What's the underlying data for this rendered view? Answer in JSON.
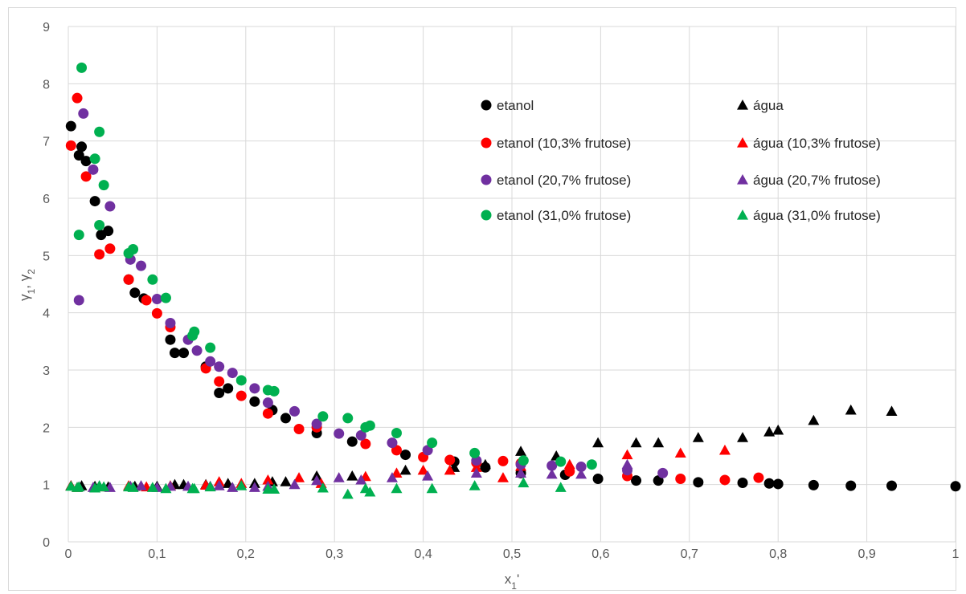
{
  "chart_data": {
    "type": "scatter",
    "xlabel": "x1'",
    "ylabel": "γ1, γ2",
    "xlim": [
      0,
      1
    ],
    "ylim": [
      0,
      9
    ],
    "grid": true,
    "legend_position": "top-right",
    "x_ticks": [
      "0",
      "0,1",
      "0,2",
      "0,3",
      "0,4",
      "0,5",
      "0,6",
      "0,7",
      "0,8",
      "0,9",
      "1"
    ],
    "y_ticks": [
      "0",
      "1",
      "2",
      "3",
      "4",
      "5",
      "6",
      "7",
      "8",
      "9"
    ],
    "series": [
      {
        "name": "etanol",
        "marker": "circle",
        "color": "#000000",
        "points": [
          [
            0.003,
            7.26
          ],
          [
            0.012,
            6.75
          ],
          [
            0.015,
            6.9
          ],
          [
            0.02,
            6.65
          ],
          [
            0.03,
            5.95
          ],
          [
            0.037,
            5.36
          ],
          [
            0.045,
            5.43
          ],
          [
            0.068,
            4.58
          ],
          [
            0.075,
            4.35
          ],
          [
            0.085,
            4.25
          ],
          [
            0.115,
            3.53
          ],
          [
            0.12,
            3.3
          ],
          [
            0.13,
            3.3
          ],
          [
            0.155,
            3.06
          ],
          [
            0.17,
            2.6
          ],
          [
            0.18,
            2.68
          ],
          [
            0.21,
            2.45
          ],
          [
            0.23,
            2.3
          ],
          [
            0.245,
            2.16
          ],
          [
            0.28,
            1.9
          ],
          [
            0.32,
            1.75
          ],
          [
            0.38,
            1.52
          ],
          [
            0.435,
            1.4
          ],
          [
            0.47,
            1.3
          ],
          [
            0.51,
            1.2
          ],
          [
            0.56,
            1.17
          ],
          [
            0.597,
            1.1
          ],
          [
            0.64,
            1.07
          ],
          [
            0.665,
            1.07
          ],
          [
            0.71,
            1.04
          ],
          [
            0.76,
            1.03
          ],
          [
            0.79,
            1.02
          ],
          [
            0.8,
            1.01
          ],
          [
            0.84,
            0.99
          ],
          [
            0.882,
            0.98
          ],
          [
            0.928,
            0.98
          ],
          [
            1.0,
            0.97
          ]
        ]
      },
      {
        "name": "água",
        "marker": "triangle",
        "color": "#000000",
        "points": [
          [
            0.003,
            0.98
          ],
          [
            0.015,
            0.98
          ],
          [
            0.03,
            0.97
          ],
          [
            0.045,
            0.96
          ],
          [
            0.075,
            0.97
          ],
          [
            0.1,
            0.97
          ],
          [
            0.12,
            1.0
          ],
          [
            0.13,
            1.0
          ],
          [
            0.155,
            1.0
          ],
          [
            0.18,
            1.02
          ],
          [
            0.21,
            1.02
          ],
          [
            0.23,
            1.05
          ],
          [
            0.245,
            1.05
          ],
          [
            0.28,
            1.15
          ],
          [
            0.32,
            1.15
          ],
          [
            0.38,
            1.25
          ],
          [
            0.435,
            1.3
          ],
          [
            0.47,
            1.35
          ],
          [
            0.51,
            1.58
          ],
          [
            0.55,
            1.5
          ],
          [
            0.597,
            1.73
          ],
          [
            0.64,
            1.73
          ],
          [
            0.665,
            1.73
          ],
          [
            0.71,
            1.82
          ],
          [
            0.76,
            1.82
          ],
          [
            0.79,
            1.92
          ],
          [
            0.8,
            1.95
          ],
          [
            0.84,
            2.12
          ],
          [
            0.882,
            2.3
          ],
          [
            0.928,
            2.28
          ]
        ]
      },
      {
        "name": "etanol (10,3% frutose)",
        "marker": "circle",
        "color": "#ff0000",
        "points": [
          [
            0.003,
            6.92
          ],
          [
            0.01,
            7.75
          ],
          [
            0.02,
            6.38
          ],
          [
            0.035,
            5.02
          ],
          [
            0.047,
            5.12
          ],
          [
            0.068,
            4.58
          ],
          [
            0.088,
            4.22
          ],
          [
            0.1,
            3.99
          ],
          [
            0.115,
            3.75
          ],
          [
            0.155,
            3.03
          ],
          [
            0.17,
            2.8
          ],
          [
            0.195,
            2.55
          ],
          [
            0.225,
            2.24
          ],
          [
            0.26,
            1.97
          ],
          [
            0.28,
            2.0
          ],
          [
            0.335,
            1.71
          ],
          [
            0.37,
            1.6
          ],
          [
            0.4,
            1.48
          ],
          [
            0.43,
            1.43
          ],
          [
            0.46,
            1.38
          ],
          [
            0.49,
            1.41
          ],
          [
            0.51,
            1.37
          ],
          [
            0.565,
            1.23
          ],
          [
            0.63,
            1.15
          ],
          [
            0.69,
            1.1
          ],
          [
            0.74,
            1.08
          ],
          [
            0.778,
            1.12
          ]
        ]
      },
      {
        "name": "água (10,3% frutose)",
        "marker": "triangle",
        "color": "#ff0000",
        "points": [
          [
            0.003,
            0.98
          ],
          [
            0.01,
            0.95
          ],
          [
            0.035,
            0.96
          ],
          [
            0.068,
            0.98
          ],
          [
            0.088,
            0.96
          ],
          [
            0.115,
            0.98
          ],
          [
            0.155,
            0.99
          ],
          [
            0.17,
            1.05
          ],
          [
            0.195,
            1.02
          ],
          [
            0.225,
            1.08
          ],
          [
            0.26,
            1.12
          ],
          [
            0.285,
            1.02
          ],
          [
            0.335,
            1.14
          ],
          [
            0.37,
            1.2
          ],
          [
            0.4,
            1.25
          ],
          [
            0.43,
            1.25
          ],
          [
            0.46,
            1.3
          ],
          [
            0.49,
            1.12
          ],
          [
            0.51,
            1.32
          ],
          [
            0.565,
            1.35
          ],
          [
            0.63,
            1.52
          ],
          [
            0.69,
            1.55
          ],
          [
            0.74,
            1.6
          ]
        ]
      },
      {
        "name": "etanol (20,7% frutose)",
        "marker": "circle",
        "color": "#7030a0",
        "points": [
          [
            0.012,
            4.22
          ],
          [
            0.017,
            7.48
          ],
          [
            0.028,
            6.5
          ],
          [
            0.047,
            5.86
          ],
          [
            0.07,
            4.93
          ],
          [
            0.082,
            4.82
          ],
          [
            0.1,
            4.24
          ],
          [
            0.115,
            3.82
          ],
          [
            0.135,
            3.53
          ],
          [
            0.145,
            3.34
          ],
          [
            0.16,
            3.15
          ],
          [
            0.17,
            3.06
          ],
          [
            0.185,
            2.95
          ],
          [
            0.21,
            2.68
          ],
          [
            0.225,
            2.43
          ],
          [
            0.255,
            2.28
          ],
          [
            0.28,
            2.06
          ],
          [
            0.305,
            1.89
          ],
          [
            0.33,
            1.86
          ],
          [
            0.365,
            1.73
          ],
          [
            0.405,
            1.6
          ],
          [
            0.46,
            1.42
          ],
          [
            0.51,
            1.35
          ],
          [
            0.545,
            1.33
          ],
          [
            0.578,
            1.31
          ],
          [
            0.63,
            1.25
          ],
          [
            0.67,
            1.2
          ]
        ]
      },
      {
        "name": "água (20,7% frutose)",
        "marker": "triangle",
        "color": "#7030a0",
        "points": [
          [
            0.012,
            0.96
          ],
          [
            0.028,
            0.95
          ],
          [
            0.047,
            0.95
          ],
          [
            0.07,
            0.97
          ],
          [
            0.082,
            0.98
          ],
          [
            0.1,
            0.95
          ],
          [
            0.115,
            0.97
          ],
          [
            0.135,
            0.97
          ],
          [
            0.16,
            0.97
          ],
          [
            0.17,
            0.98
          ],
          [
            0.185,
            0.95
          ],
          [
            0.21,
            0.95
          ],
          [
            0.225,
            0.97
          ],
          [
            0.255,
            1.0
          ],
          [
            0.28,
            1.07
          ],
          [
            0.305,
            1.12
          ],
          [
            0.33,
            1.08
          ],
          [
            0.365,
            1.12
          ],
          [
            0.405,
            1.15
          ],
          [
            0.46,
            1.2
          ],
          [
            0.51,
            1.2
          ],
          [
            0.545,
            1.18
          ],
          [
            0.578,
            1.18
          ],
          [
            0.63,
            1.35
          ]
        ]
      },
      {
        "name": "etanol (31,0% frutose)",
        "marker": "circle",
        "color": "#00b050",
        "points": [
          [
            0.012,
            5.36
          ],
          [
            0.015,
            8.28
          ],
          [
            0.03,
            6.69
          ],
          [
            0.035,
            7.16
          ],
          [
            0.035,
            5.53
          ],
          [
            0.04,
            6.23
          ],
          [
            0.068,
            5.04
          ],
          [
            0.073,
            5.11
          ],
          [
            0.095,
            4.58
          ],
          [
            0.11,
            4.26
          ],
          [
            0.14,
            3.6
          ],
          [
            0.142,
            3.67
          ],
          [
            0.16,
            3.39
          ],
          [
            0.195,
            2.82
          ],
          [
            0.225,
            2.65
          ],
          [
            0.232,
            2.63
          ],
          [
            0.287,
            2.19
          ],
          [
            0.315,
            2.16
          ],
          [
            0.335,
            2.0
          ],
          [
            0.34,
            2.03
          ],
          [
            0.37,
            1.9
          ],
          [
            0.41,
            1.73
          ],
          [
            0.458,
            1.55
          ],
          [
            0.513,
            1.42
          ],
          [
            0.555,
            1.4
          ],
          [
            0.59,
            1.35
          ]
        ]
      },
      {
        "name": "água (31,0% frutose)",
        "marker": "triangle",
        "color": "#00b050",
        "points": [
          [
            0.003,
            0.97
          ],
          [
            0.01,
            0.95
          ],
          [
            0.012,
            0.96
          ],
          [
            0.03,
            0.94
          ],
          [
            0.035,
            0.98
          ],
          [
            0.04,
            0.96
          ],
          [
            0.068,
            0.96
          ],
          [
            0.073,
            0.95
          ],
          [
            0.095,
            0.95
          ],
          [
            0.11,
            0.93
          ],
          [
            0.14,
            0.93
          ],
          [
            0.142,
            0.93
          ],
          [
            0.16,
            0.96
          ],
          [
            0.195,
            0.98
          ],
          [
            0.225,
            0.92
          ],
          [
            0.232,
            0.92
          ],
          [
            0.287,
            0.94
          ],
          [
            0.315,
            0.83
          ],
          [
            0.335,
            0.93
          ],
          [
            0.34,
            0.87
          ],
          [
            0.37,
            0.93
          ],
          [
            0.41,
            0.93
          ],
          [
            0.458,
            0.98
          ],
          [
            0.513,
            1.03
          ],
          [
            0.555,
            0.95
          ]
        ]
      }
    ]
  }
}
